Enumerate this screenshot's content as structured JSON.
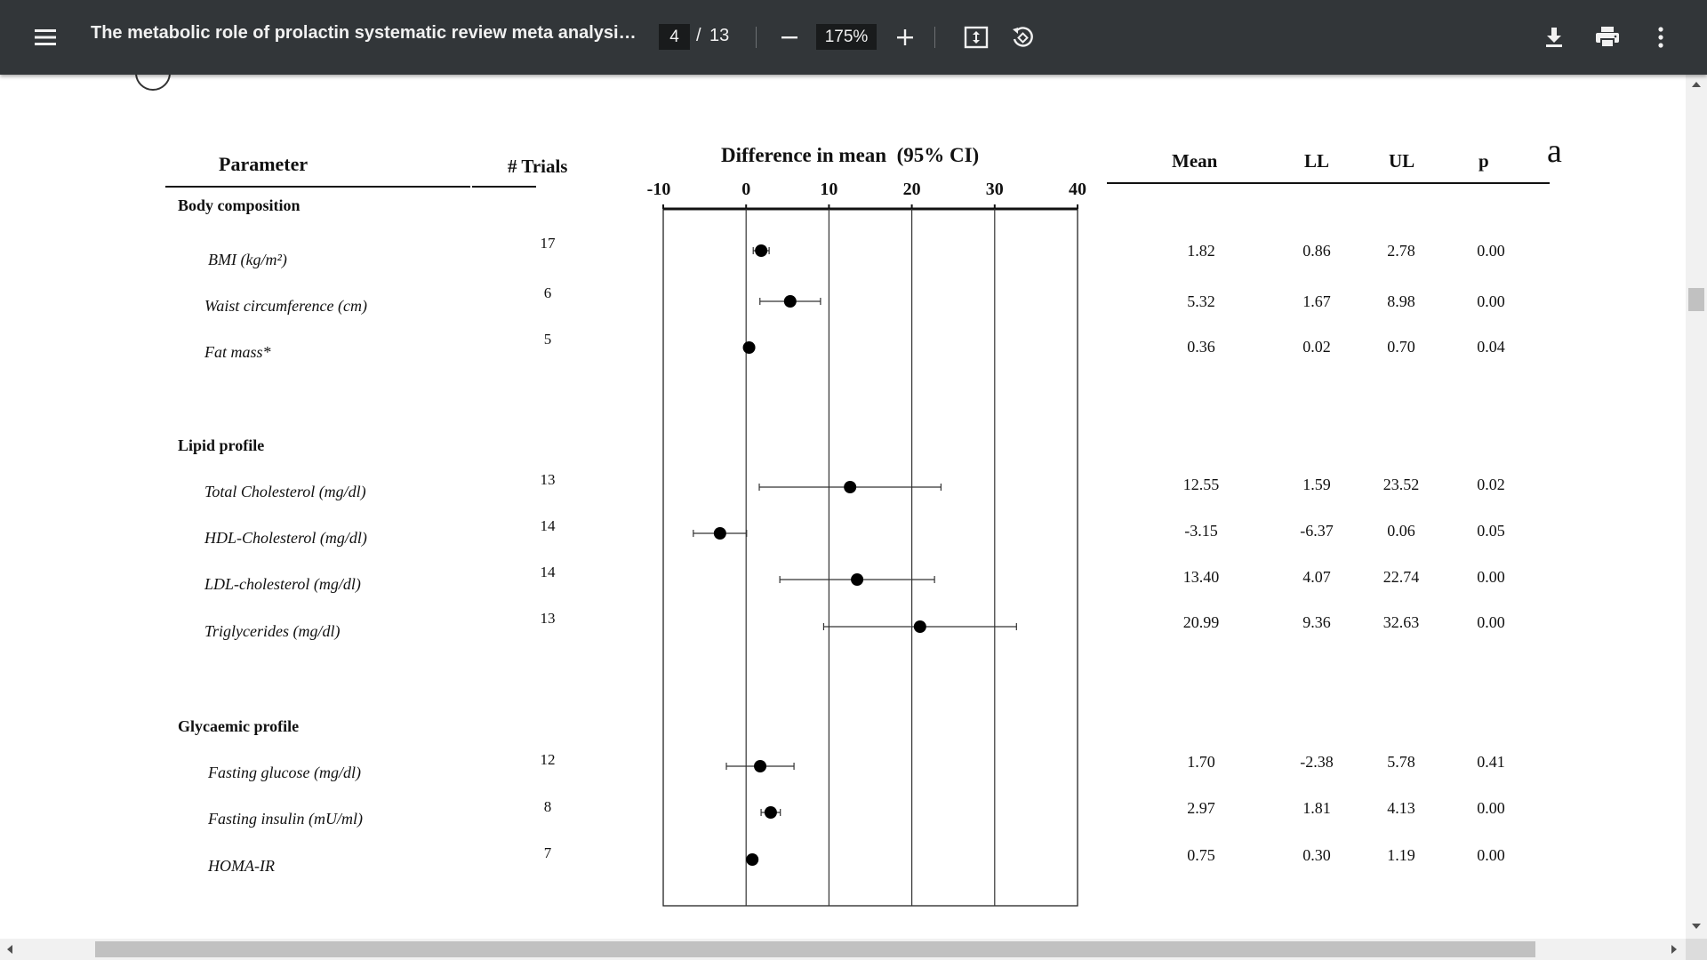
{
  "toolbar": {
    "menu_icon": "hamburger-menu-icon",
    "title": "The metabolic role of prolactin systematic review meta analysis...",
    "page_current": "4",
    "page_separator": "/",
    "page_total": "13",
    "zoom_level": "175%",
    "zoom_out_icon": "minus-icon",
    "zoom_in_icon": "plus-icon",
    "fit_icon": "fit-to-page-icon",
    "rotate_icon": "rotate-counterclockwise-icon",
    "download_icon": "download-icon",
    "print_icon": "print-icon",
    "more_icon": "more-vertical-icon",
    "background": "#323639"
  },
  "figure": {
    "panel_label": "a",
    "headers": {
      "parameter": "Parameter",
      "trials": "# Trials",
      "plot_title": "Difference in mean  (95% CI)",
      "mean": "Mean",
      "ll": "LL",
      "ul": "UL",
      "p": "p"
    },
    "groups": [
      {
        "name": "Body composition",
        "rows": [
          {
            "label": "BMI (kg/m²)",
            "trials": "17",
            "mean": "1.82",
            "ll": "0.86",
            "ul": "2.78",
            "p": "0.00"
          },
          {
            "label": "Waist circumference (cm)",
            "trials": "6",
            "mean": "5.32",
            "ll": "1.67",
            "ul": "8.98",
            "p": "0.00"
          },
          {
            "label": "Fat mass*",
            "trials": "5",
            "mean": "0.36",
            "ll": "0.02",
            "ul": "0.70",
            "p": "0.04"
          }
        ]
      },
      {
        "name": "Lipid profile",
        "rows": [
          {
            "label": "Total Cholesterol (mg/dl)",
            "trials": "13",
            "mean": "12.55",
            "ll": "1.59",
            "ul": "23.52",
            "p": "0.02"
          },
          {
            "label": "HDL-Cholesterol (mg/dl)",
            "trials": "14",
            "mean": "-3.15",
            "ll": "-6.37",
            "ul": "0.06",
            "p": "0.05"
          },
          {
            "label": "LDL-cholesterol (mg/dl)",
            "trials": "14",
            "mean": "13.40",
            "ll": "4.07",
            "ul": "22.74",
            "p": "0.00"
          },
          {
            "label": "Triglycerides (mg/dl)",
            "trials": "13",
            "mean": "20.99",
            "ll": "9.36",
            "ul": "32.63",
            "p": "0.00"
          }
        ]
      },
      {
        "name": "Glycaemic profile",
        "rows": [
          {
            "label": "Fasting glucose (mg/dl)",
            "trials": "12",
            "mean": "1.70",
            "ll": "-2.38",
            "ul": "5.78",
            "p": "0.41"
          },
          {
            "label": "Fasting insulin (mU/ml)",
            "trials": "8",
            "mean": "2.97",
            "ll": "1.81",
            "ul": "4.13",
            "p": "0.00"
          },
          {
            "label": "HOMA-IR",
            "trials": "7",
            "mean": "0.75",
            "ll": "0.30",
            "ul": "1.19",
            "p": "0.00"
          }
        ]
      }
    ]
  },
  "chart_data": {
    "type": "scatter",
    "subtype": "forest-plot",
    "title": "Difference in mean  (95% CI)",
    "xlim": [
      -10,
      40
    ],
    "xticks": [
      "-10",
      "0",
      "10",
      "20",
      "30",
      "40"
    ],
    "grid": true,
    "points": [
      {
        "label": "BMI (kg/m²)",
        "mean": 1.82,
        "ll": 0.86,
        "ul": 2.78
      },
      {
        "label": "Waist circumference (cm)",
        "mean": 5.32,
        "ll": 1.67,
        "ul": 8.98
      },
      {
        "label": "Fat mass*",
        "mean": 0.36,
        "ll": 0.02,
        "ul": 0.7
      },
      {
        "label": "Total Cholesterol (mg/dl)",
        "mean": 12.55,
        "ll": 1.59,
        "ul": 23.52
      },
      {
        "label": "HDL-Cholesterol (mg/dl)",
        "mean": -3.15,
        "ll": -6.37,
        "ul": 0.06
      },
      {
        "label": "LDL-cholesterol (mg/dl)",
        "mean": 13.4,
        "ll": 4.07,
        "ul": 22.74
      },
      {
        "label": "Triglycerides (mg/dl)",
        "mean": 20.99,
        "ll": 9.36,
        "ul": 32.63
      },
      {
        "label": "Fasting glucose (mg/dl)",
        "mean": 1.7,
        "ll": -2.38,
        "ul": 5.78
      },
      {
        "label": "Fasting insulin (mU/ml)",
        "mean": 2.97,
        "ll": 1.81,
        "ul": 4.13
      },
      {
        "label": "HOMA-IR",
        "mean": 0.75,
        "ll": 0.3,
        "ul": 1.19
      }
    ]
  },
  "scrollbars": {
    "up_arrow_icon": "arrow-up-icon",
    "down_arrow_icon": "arrow-down-icon",
    "left_arrow_icon": "arrow-left-icon",
    "right_arrow_icon": "arrow-right-icon"
  }
}
